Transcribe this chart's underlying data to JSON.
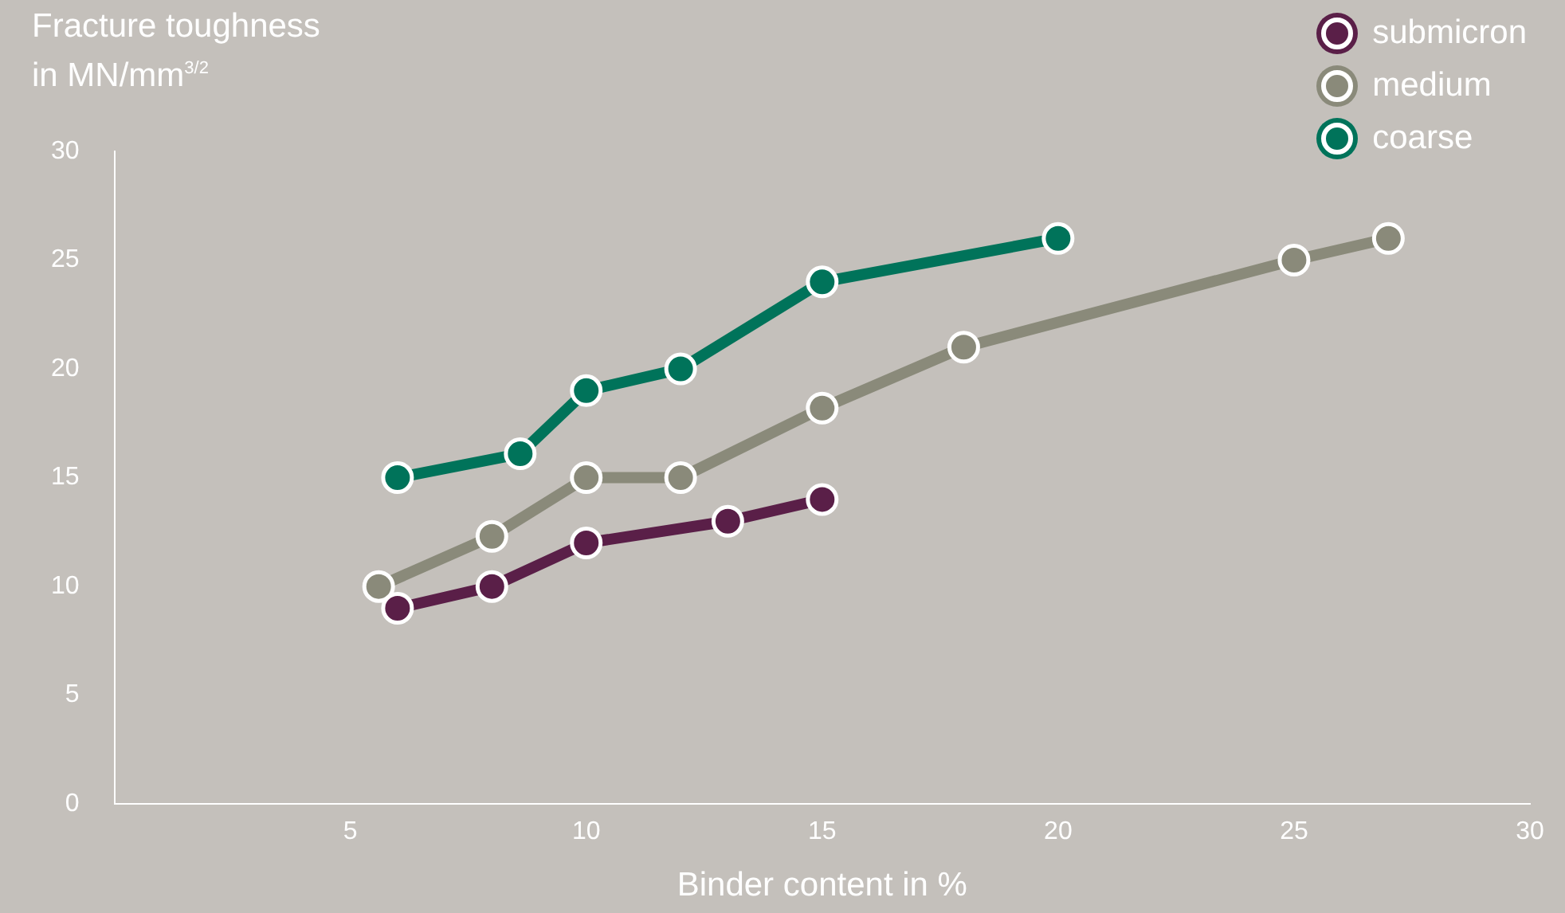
{
  "chart_data": {
    "type": "line",
    "ylabel": "Fracture toughness\nin MN/mm$^{3/2}$",
    "xlabel": "Binder content in %",
    "xlim": [
      0,
      30
    ],
    "xticks": [
      5,
      10,
      15,
      20,
      25,
      30
    ],
    "ylim": [
      0,
      30
    ],
    "yticks": [
      0,
      5,
      10,
      15,
      20,
      25,
      30
    ],
    "grid": false,
    "legend": "top right",
    "marker": "circle",
    "line_style": "solid",
    "series": [
      {
        "name": "submicron",
        "color": "#5a1f48",
        "x": [
          6,
          8,
          10,
          13,
          15
        ],
        "values": [
          9,
          10,
          12,
          13,
          14
        ]
      },
      {
        "name": "medium",
        "color": "#8a8a7a",
        "x": [
          5.6,
          8,
          10,
          12,
          15,
          18,
          25,
          27
        ],
        "values": [
          10,
          12.3,
          15,
          15,
          18.2,
          21,
          25,
          26
        ]
      },
      {
        "name": "coarse",
        "color": "#00735a",
        "x": [
          6,
          8.6,
          10,
          12,
          15,
          20
        ],
        "values": [
          15,
          16.1,
          19,
          20,
          24,
          26
        ]
      }
    ]
  }
}
